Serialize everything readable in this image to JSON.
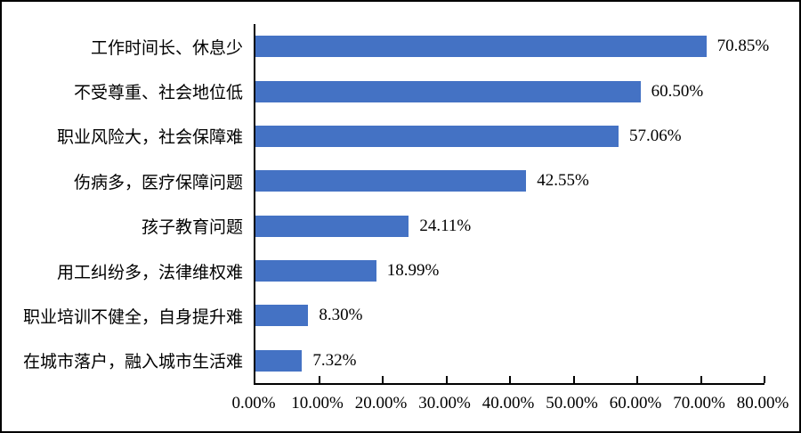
{
  "chart_data": {
    "type": "bar",
    "orientation": "horizontal",
    "title": "",
    "xlabel": "",
    "ylabel": "",
    "categories": [
      "工作时间长、休息少",
      "不受尊重、社会地位低",
      "职业风险大，社会保障难",
      "伤病多，医疗保障问题",
      "孩子教育问题",
      "用工纠纷多，法律维权难",
      "职业培训不健全，自身提升难",
      "在城市落户，融入城市生活难"
    ],
    "values": [
      70.85,
      60.5,
      57.06,
      42.55,
      24.11,
      18.99,
      8.3,
      7.32
    ],
    "value_labels": [
      "70.85%",
      "60.50%",
      "57.06%",
      "42.55%",
      "24.11%",
      "18.99%",
      "8.30%",
      "7.32%"
    ],
    "xlim": [
      0,
      80
    ],
    "x_ticks": [
      "0.00%",
      "10.00%",
      "20.00%",
      "30.00%",
      "40.00%",
      "50.00%",
      "60.00%",
      "70.00%",
      "80.00%"
    ],
    "grid": false,
    "legend": null,
    "colors": {
      "bar": "#4472C4",
      "axis": "#000000",
      "text": "#000000",
      "background": "#FFFFFF",
      "figure_border": "#000000"
    }
  }
}
